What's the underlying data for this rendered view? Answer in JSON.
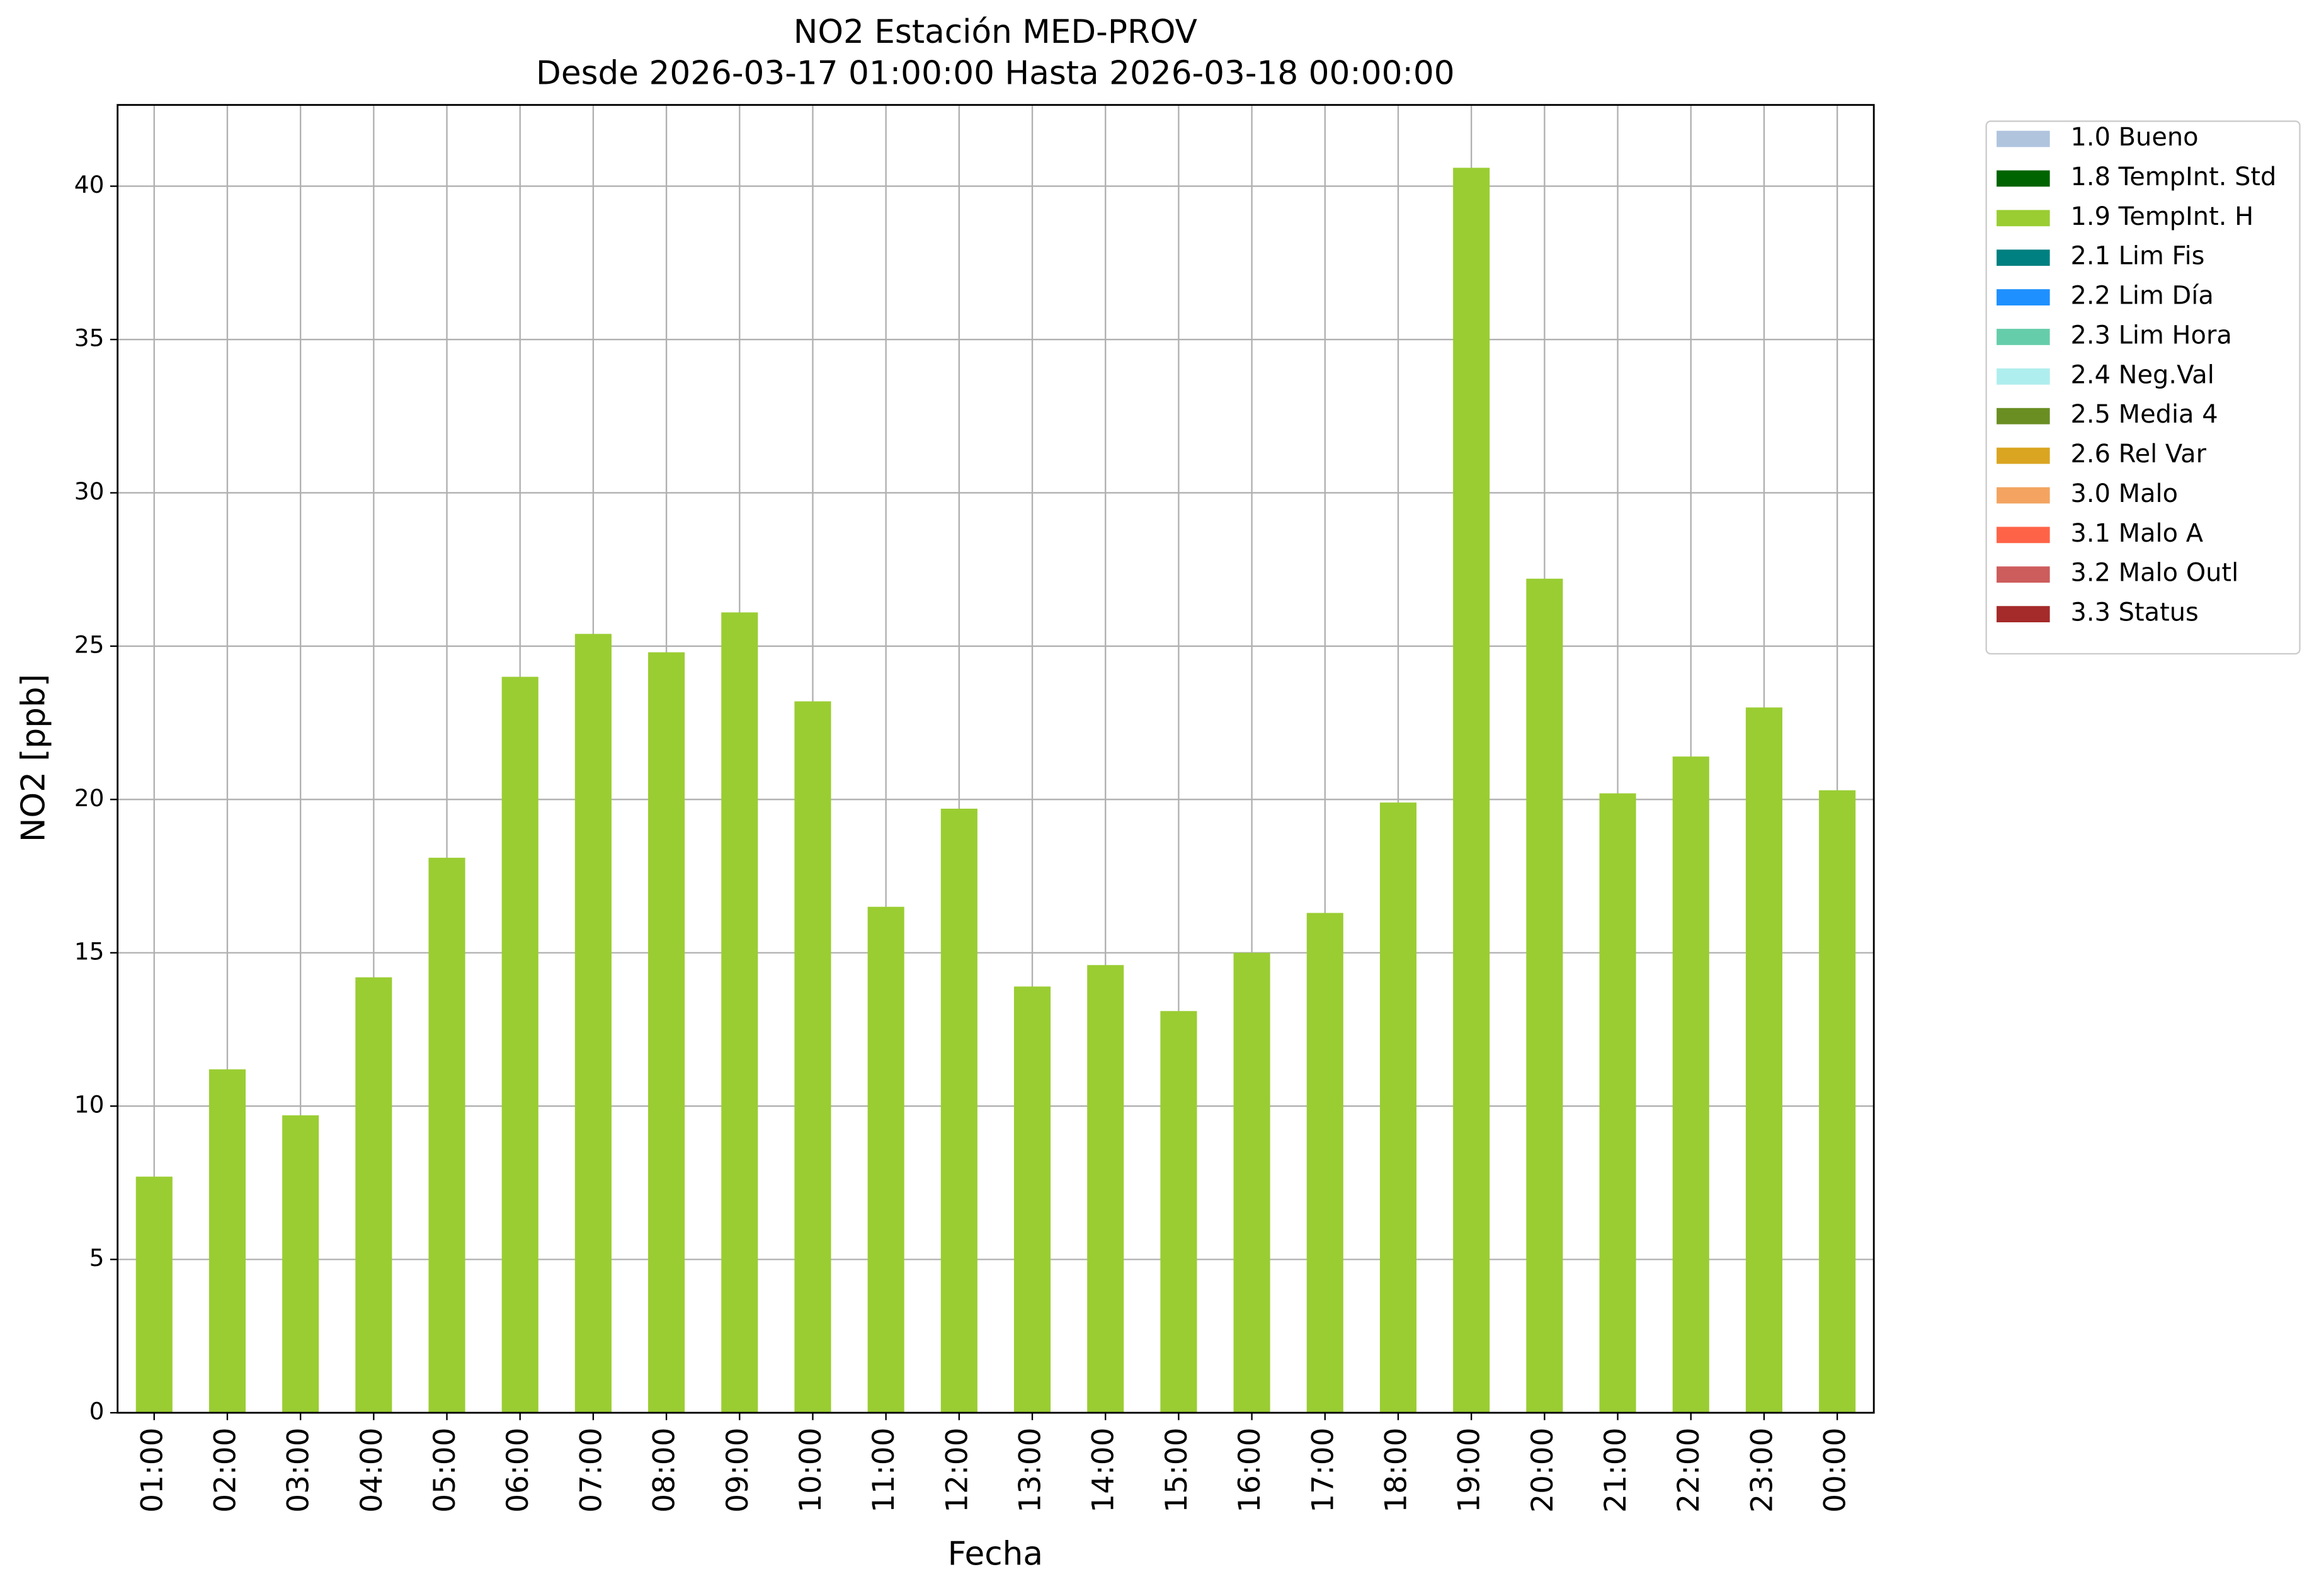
{
  "chart_data": {
    "type": "stacked_bar",
    "title": "NO2 Estación MED-PROV",
    "subtitle": "Desde 2026-03-17 01:00:00 Hasta 2026-03-18 00:00:00",
    "xlabel": "Fecha",
    "ylabel": "NO2 [ppb]",
    "categories": [
      "01:00",
      "02:00",
      "03:00",
      "04:00",
      "05:00",
      "06:00",
      "07:00",
      "08:00",
      "09:00",
      "10:00",
      "11:00",
      "12:00",
      "13:00",
      "14:00",
      "15:00",
      "16:00",
      "17:00",
      "18:00",
      "19:00",
      "20:00",
      "21:00",
      "22:00",
      "23:00",
      "00:00"
    ],
    "ylim": [
      0,
      42.65
    ],
    "yticks": [
      0,
      5,
      10,
      15,
      20,
      25,
      30,
      35,
      40
    ],
    "grid": true,
    "legend": "outside-upper-right",
    "series": [
      {
        "name": "1.0 Bueno",
        "color": "#b0c4de",
        "values": [
          null,
          null,
          null,
          null,
          null,
          null,
          null,
          null,
          null,
          null,
          null,
          null,
          null,
          null,
          null,
          null,
          null,
          null,
          null,
          null,
          null,
          null,
          null,
          null
        ]
      },
      {
        "name": "1.8 TempInt. Std",
        "color": "#006400",
        "values": [
          null,
          null,
          null,
          null,
          null,
          null,
          null,
          null,
          null,
          null,
          null,
          null,
          null,
          null,
          null,
          null,
          null,
          null,
          null,
          null,
          null,
          null,
          null,
          null
        ]
      },
      {
        "name": "1.9 TempInt. H",
        "color": "#9acd32",
        "values": [
          7.7,
          11.2,
          9.7,
          14.2,
          18.1,
          24.0,
          25.4,
          24.8,
          26.1,
          23.2,
          16.5,
          19.7,
          13.9,
          14.6,
          13.1,
          15.0,
          16.3,
          19.9,
          40.6,
          27.2,
          20.2,
          21.4,
          23.0,
          20.3
        ]
      },
      {
        "name": "2.1 Lim Fis",
        "color": "#008080",
        "values": [
          null,
          null,
          null,
          null,
          null,
          null,
          null,
          null,
          null,
          null,
          null,
          null,
          null,
          null,
          null,
          null,
          null,
          null,
          null,
          null,
          null,
          null,
          null,
          null
        ]
      },
      {
        "name": "2.2 Lim Día",
        "color": "#1e90ff",
        "values": [
          null,
          null,
          null,
          null,
          null,
          null,
          null,
          null,
          null,
          null,
          null,
          null,
          null,
          null,
          null,
          null,
          null,
          null,
          null,
          null,
          null,
          null,
          null,
          null
        ]
      },
      {
        "name": "2.3 Lim Hora",
        "color": "#66cdaa",
        "values": [
          null,
          null,
          null,
          null,
          null,
          null,
          null,
          null,
          null,
          null,
          null,
          null,
          null,
          null,
          null,
          null,
          null,
          null,
          null,
          null,
          null,
          null,
          null,
          null
        ]
      },
      {
        "name": "2.4 Neg.Val",
        "color": "#afeeee",
        "values": [
          null,
          null,
          null,
          null,
          null,
          null,
          null,
          null,
          null,
          null,
          null,
          null,
          null,
          null,
          null,
          null,
          null,
          null,
          null,
          null,
          null,
          null,
          null,
          null
        ]
      },
      {
        "name": "2.5 Media 4",
        "color": "#6b8e23",
        "values": [
          null,
          null,
          null,
          null,
          null,
          null,
          null,
          null,
          null,
          null,
          null,
          null,
          null,
          null,
          null,
          null,
          null,
          null,
          null,
          null,
          null,
          null,
          null,
          null
        ]
      },
      {
        "name": "2.6 Rel Var",
        "color": "#daa520",
        "values": [
          null,
          null,
          null,
          null,
          null,
          null,
          null,
          null,
          null,
          null,
          null,
          null,
          null,
          null,
          null,
          null,
          null,
          null,
          null,
          null,
          null,
          null,
          null,
          null
        ]
      },
      {
        "name": "3.0 Malo",
        "color": "#f4a460",
        "values": [
          null,
          null,
          null,
          null,
          null,
          null,
          null,
          null,
          null,
          null,
          null,
          null,
          null,
          null,
          null,
          null,
          null,
          null,
          null,
          null,
          null,
          null,
          null,
          null
        ]
      },
      {
        "name": "3.1 Malo A",
        "color": "#ff6347",
        "values": [
          null,
          null,
          null,
          null,
          null,
          null,
          null,
          null,
          null,
          null,
          null,
          null,
          null,
          null,
          null,
          null,
          null,
          null,
          null,
          null,
          null,
          null,
          null,
          null
        ]
      },
      {
        "name": "3.2 Malo Outl",
        "color": "#cd5c5c",
        "values": [
          null,
          null,
          null,
          null,
          null,
          null,
          null,
          null,
          null,
          null,
          null,
          null,
          null,
          null,
          null,
          null,
          null,
          null,
          null,
          null,
          null,
          null,
          null,
          null
        ]
      },
      {
        "name": "3.3 Status",
        "color": "#a52a2a",
        "values": [
          null,
          null,
          null,
          null,
          null,
          null,
          null,
          null,
          null,
          null,
          null,
          null,
          null,
          null,
          null,
          null,
          null,
          null,
          null,
          null,
          null,
          null,
          null,
          null
        ]
      }
    ]
  }
}
